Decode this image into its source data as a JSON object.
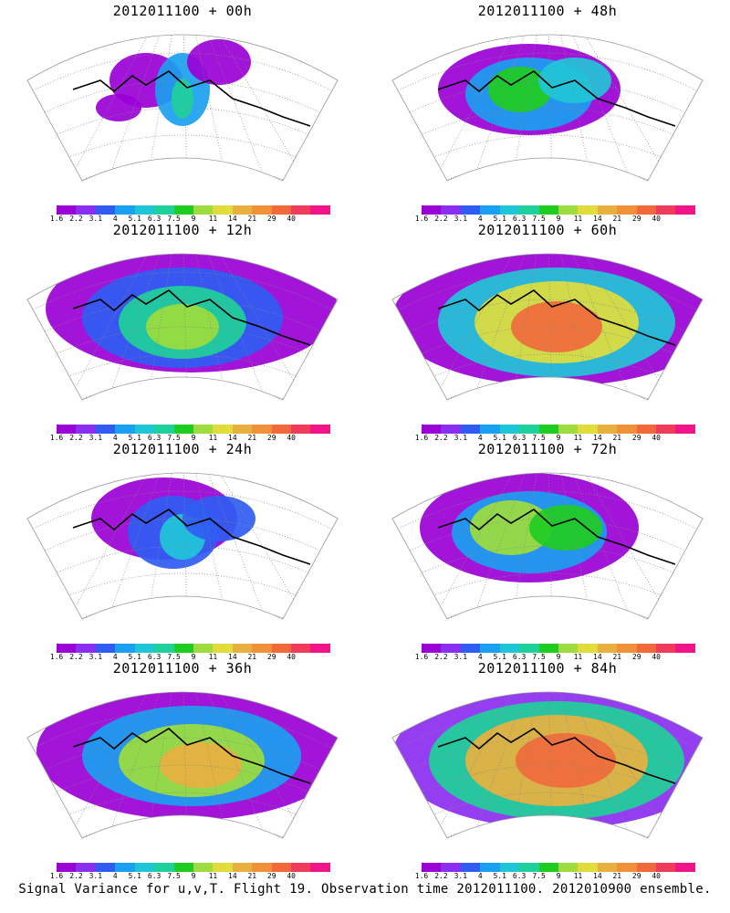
{
  "panels": [
    {
      "title": "2012011100 + 00h",
      "intensity": 0
    },
    {
      "title": "2012011100 + 48h",
      "intensity": 4
    },
    {
      "title": "2012011100 + 12h",
      "intensity": 1
    },
    {
      "title": "2012011100 + 60h",
      "intensity": 5
    },
    {
      "title": "2012011100 + 24h",
      "intensity": 2
    },
    {
      "title": "2012011100 + 72h",
      "intensity": 6
    },
    {
      "title": "2012011100 + 36h",
      "intensity": 3
    },
    {
      "title": "2012011100 + 84h",
      "intensity": 7
    }
  ],
  "colorbar": {
    "colors": [
      "#9b00d6",
      "#8c2ef0",
      "#2f5cf2",
      "#1aa0f0",
      "#20c6d8",
      "#1ed09a",
      "#20cc20",
      "#9cdc3c",
      "#e0dc3c",
      "#e8b040",
      "#f09038",
      "#f06a3c",
      "#f03c5c",
      "#f01488"
    ],
    "labels": [
      "1.6",
      "2.2",
      "3.1",
      "4",
      "5.1",
      "6.3",
      "7.5",
      "9",
      "11",
      "14",
      "21",
      "29",
      "40"
    ]
  },
  "footer": "Signal Variance for u,v,T. Flight 19. Observation time 2012011100. 2012010900 ensemble."
}
